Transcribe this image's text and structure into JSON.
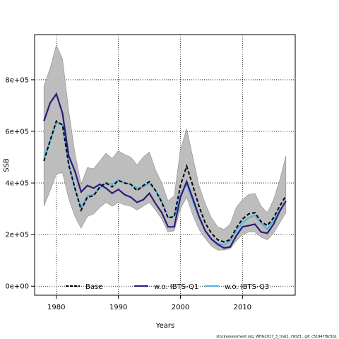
{
  "chart_data": {
    "type": "line",
    "xlabel": "Years",
    "ylabel": "SSB",
    "xlim": [
      1976.5,
      2018.5
    ],
    "ylim": [
      -35000,
      975000
    ],
    "xticks": [
      1980,
      1990,
      2000,
      2010
    ],
    "yticks": [
      0,
      200000,
      400000,
      600000,
      800000
    ],
    "ytick_labels": [
      "0e+00",
      "2e+05",
      "4e+05",
      "6e+05",
      "8e+05"
    ],
    "grid": "dotted",
    "legend": "bottom",
    "x": [
      1978,
      1979,
      1980,
      1981,
      1982,
      1983,
      1984,
      1985,
      1986,
      1987,
      1988,
      1989,
      1990,
      1991,
      1992,
      1993,
      1994,
      1995,
      1996,
      1997,
      1998,
      1999,
      2000,
      2001,
      2002,
      2003,
      2004,
      2005,
      2006,
      2007,
      2008,
      2009,
      2010,
      2011,
      2012,
      2013,
      2014,
      2015,
      2016,
      2017
    ],
    "band": {
      "upper": [
        775000,
        845000,
        935000,
        880000,
        680000,
        515000,
        395000,
        460000,
        455000,
        485000,
        515000,
        495000,
        525000,
        510000,
        500000,
        470000,
        500000,
        520000,
        450000,
        400000,
        330000,
        350000,
        530000,
        610000,
        500000,
        390000,
        320000,
        265000,
        230000,
        220000,
        240000,
        305000,
        335000,
        355000,
        360000,
        310000,
        285000,
        335000,
        410000,
        505000
      ],
      "lower": [
        310000,
        370000,
        435000,
        440000,
        340000,
        270000,
        225000,
        270000,
        280000,
        305000,
        325000,
        310000,
        325000,
        315000,
        310000,
        295000,
        310000,
        325000,
        295000,
        260000,
        210000,
        215000,
        300000,
        345000,
        275000,
        220000,
        185000,
        155000,
        140000,
        140000,
        145000,
        175000,
        200000,
        210000,
        210000,
        190000,
        180000,
        205000,
        245000,
        285000
      ]
    },
    "series": [
      {
        "name": "Base",
        "color": "#000000",
        "dash": "dashed",
        "values": [
          485000,
          565000,
          640000,
          625000,
          470000,
          380000,
          295000,
          345000,
          350000,
          385000,
          400000,
          385000,
          410000,
          400000,
          395000,
          370000,
          390000,
          405000,
          370000,
          325000,
          265000,
          270000,
          390000,
          465000,
          390000,
          310000,
          245000,
          205000,
          180000,
          172000,
          180000,
          225000,
          260000,
          280000,
          285000,
          250000,
          235000,
          265000,
          310000,
          350000
        ]
      },
      {
        "name": "w.o. IBTS-Q1",
        "color": "#2e1a7a",
        "dash": "solid",
        "values": [
          640000,
          710000,
          745000,
          670000,
          505000,
          445000,
          365000,
          390000,
          380000,
          395000,
          380000,
          360000,
          375000,
          355000,
          345000,
          325000,
          335000,
          360000,
          320000,
          285000,
          230000,
          230000,
          345000,
          405000,
          340000,
          270000,
          215000,
          182000,
          162000,
          148000,
          152000,
          195000,
          230000,
          235000,
          240000,
          210000,
          205000,
          240000,
          290000,
          330000
        ]
      },
      {
        "name": "w.o. IBTS-Q3",
        "color": "#4db3e6",
        "dash": "solid",
        "values": [
          500000,
          560000,
          635000,
          625000,
          480000,
          375000,
          305000,
          350000,
          355000,
          380000,
          400000,
          395000,
          410000,
          400000,
          395000,
          380000,
          385000,
          400000,
          370000,
          330000,
          265000,
          270000,
          355000,
          395000,
          330000,
          265000,
          215000,
          185000,
          165000,
          160000,
          175000,
          215000,
          245000,
          265000,
          275000,
          245000,
          220000,
          255000,
          295000,
          325000
        ]
      }
    ]
  },
  "footnote": "stockassessment.org, WHG2017_3_trial2, r9023 , git: c51947f9c5b1"
}
